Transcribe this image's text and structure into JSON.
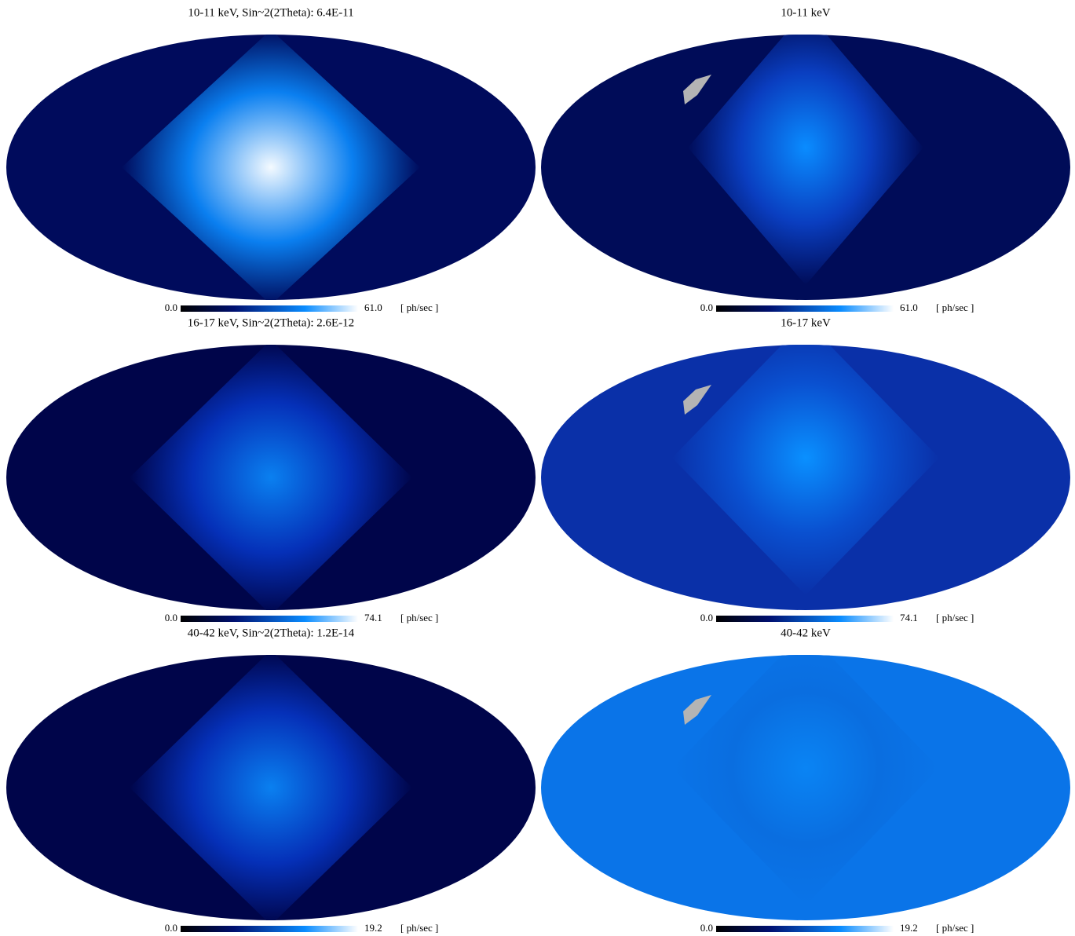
{
  "panels": [
    {
      "title": "10-11 keV, Sin~2(2Theta): 6.4E-11",
      "colorbar": {
        "min": "0.0",
        "max": "61.0",
        "unit": "[ ph/sec ]"
      }
    },
    {
      "title": "10-11 keV",
      "colorbar": {
        "min": "0.0",
        "max": "61.0",
        "unit": "[ ph/sec ]"
      }
    },
    {
      "title": "16-17 keV, Sin~2(2Theta): 2.6E-12",
      "colorbar": {
        "min": "0.0",
        "max": "74.1",
        "unit": "[ ph/sec ]"
      }
    },
    {
      "title": "16-17 keV",
      "colorbar": {
        "min": "0.0",
        "max": "74.1",
        "unit": "[ ph/sec ]"
      }
    },
    {
      "title": "40-42 keV, Sin~2(2Theta): 1.2E-14",
      "colorbar": {
        "min": "0.0",
        "max": "19.2",
        "unit": "[ ph/sec ]"
      }
    },
    {
      "title": "40-42 keV",
      "colorbar": {
        "min": "0.0",
        "max": "19.2",
        "unit": "[ ph/sec ]"
      }
    }
  ]
}
